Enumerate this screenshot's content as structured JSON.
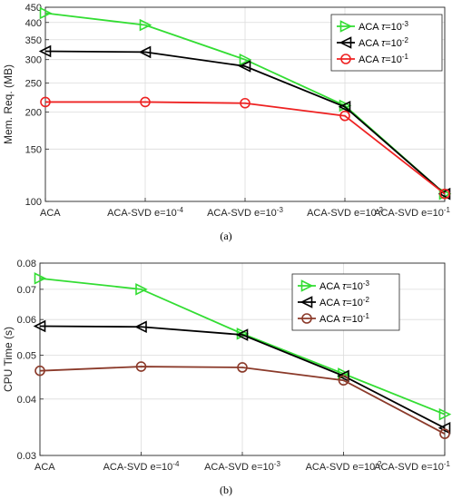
{
  "chart_data": [
    {
      "type": "line",
      "panel": "(a)",
      "ylabel": "Mem. Req. (MB)",
      "yscale": "log",
      "ylim": [
        100,
        450
      ],
      "yticks": [
        100,
        150,
        200,
        250,
        300,
        350,
        400,
        450
      ],
      "grid": true,
      "legend_position": "top-right",
      "categories": [
        "ACA",
        "ACA-SVD e=10^-4",
        "ACA-SVD e=10^-3",
        "ACA-SVD e=10^-2",
        "ACA-SVD e=10^-1"
      ],
      "series": [
        {
          "name": "ACA τ=10^-3",
          "marker": "triangle-right",
          "color": "#33dd33",
          "values": [
            430,
            392,
            300,
            210,
            106
          ]
        },
        {
          "name": "ACA τ=10^-2",
          "marker": "triangle-left",
          "color": "#000000",
          "values": [
            320,
            318,
            285,
            208,
            106
          ]
        },
        {
          "name": "ACA τ=10^-1",
          "marker": "circle",
          "color": "#ee2222",
          "values": [
            216,
            216,
            214,
            194,
            106
          ]
        }
      ]
    },
    {
      "type": "line",
      "panel": "(b)",
      "ylabel": "CPU Time (s)",
      "yscale": "log",
      "ylim": [
        0.03,
        0.08
      ],
      "yticks": [
        0.03,
        0.04,
        0.05,
        0.06,
        0.07,
        0.08
      ],
      "grid": true,
      "legend_position": "top-right",
      "categories": [
        "ACA",
        "ACA-SVD e=10^-4",
        "ACA-SVD e=10^-3",
        "ACA-SVD e=10^-2",
        "ACA-SVD e=10^-1"
      ],
      "series": [
        {
          "name": "ACA τ=10^-3",
          "marker": "triangle-right",
          "color": "#33dd33",
          "values": [
            0.074,
            0.07,
            0.0558,
            0.0455,
            0.037
          ]
        },
        {
          "name": "ACA τ=10^-2",
          "marker": "triangle-left",
          "color": "#000000",
          "values": [
            0.058,
            0.0578,
            0.0555,
            0.045,
            0.0345
          ]
        },
        {
          "name": "ACA τ=10^-1",
          "marker": "circle",
          "color": "#8b3a2a",
          "values": [
            0.0462,
            0.0472,
            0.047,
            0.044,
            0.0335
          ]
        }
      ]
    }
  ],
  "captions": [
    "(a)",
    "(b)"
  ]
}
